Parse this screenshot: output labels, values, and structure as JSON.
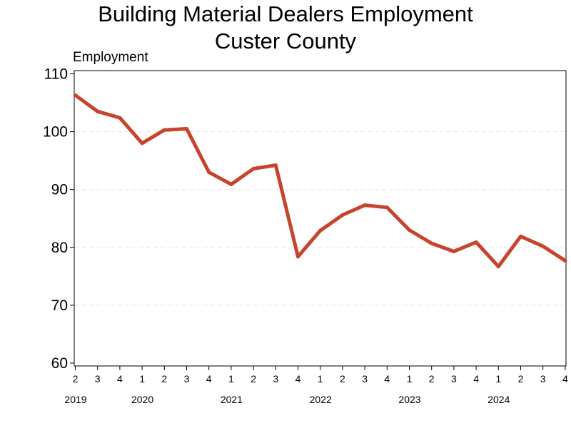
{
  "chart_data": {
    "type": "line",
    "title": [
      "Building Material Dealers Employment",
      "Custer County"
    ],
    "ylabel": "Employment",
    "xlabel": "",
    "ylim": [
      60,
      110
    ],
    "yticks": [
      60,
      70,
      80,
      90,
      100,
      110
    ],
    "grid": true,
    "legend": "none",
    "x": [
      "2019 Q2",
      "2019 Q3",
      "2019 Q4",
      "2020 Q1",
      "2020 Q2",
      "2020 Q3",
      "2020 Q4",
      "2021 Q1",
      "2021 Q2",
      "2021 Q3",
      "2021 Q4",
      "2022 Q1",
      "2022 Q2",
      "2022 Q3",
      "2022 Q4",
      "2023 Q1",
      "2023 Q2",
      "2023 Q3",
      "2023 Q4",
      "2024 Q1",
      "2024 Q2",
      "2024 Q3",
      "2024 Q4"
    ],
    "quarter_labels": [
      "2",
      "3",
      "4",
      "1",
      "2",
      "3",
      "4",
      "1",
      "2",
      "3",
      "4",
      "1",
      "2",
      "3",
      "4",
      "1",
      "2",
      "3",
      "4",
      "1",
      "2",
      "3",
      "4"
    ],
    "year_labels": [
      {
        "label": "2019",
        "index": 0
      },
      {
        "label": "2020",
        "index": 3
      },
      {
        "label": "2021",
        "index": 7
      },
      {
        "label": "2022",
        "index": 11
      },
      {
        "label": "2023",
        "index": 15
      },
      {
        "label": "2024",
        "index": 19
      }
    ],
    "series": [
      {
        "values": [
          106.3,
          103.5,
          102.4,
          98.0,
          100.3,
          100.5,
          93.0,
          90.9,
          93.6,
          94.2,
          78.4,
          82.9,
          85.6,
          87.3,
          86.9,
          83.0,
          80.7,
          79.3,
          80.9,
          76.7,
          81.9,
          80.2,
          77.7
        ],
        "color": "#c8432e"
      }
    ]
  }
}
